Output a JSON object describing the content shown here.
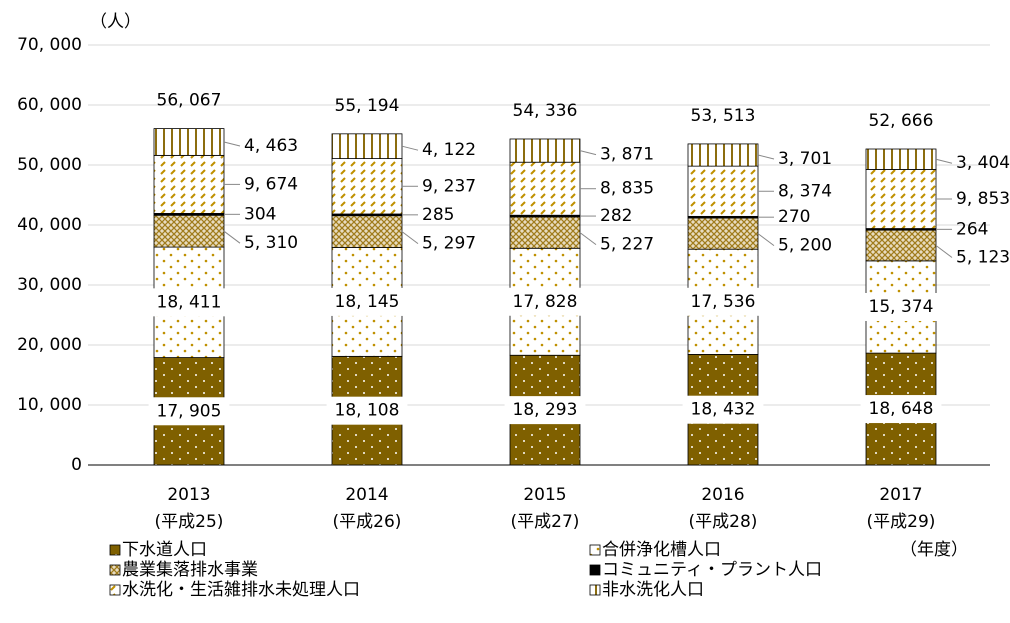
{
  "chart_data": {
    "type": "stacked_bar",
    "y_unit": "（人）",
    "x_unit": "（年度）",
    "categories": [
      "2013",
      "2014",
      "2015",
      "2016",
      "2017"
    ],
    "category_sublabels": [
      "(平成25)",
      "(平成26)",
      "(平成27)",
      "(平成28)",
      "(平成29)"
    ],
    "series": [
      {
        "name": "下水道人口",
        "color": "#7f6000",
        "values": [
          17905,
          18108,
          18293,
          18432,
          18648
        ],
        "value_labels": [
          "17, 905",
          "18, 108",
          "18, 293",
          "18, 432",
          "18, 648"
        ]
      },
      {
        "name": "合併浄化槽人口",
        "color": "#bf9000",
        "values": [
          18411,
          18145,
          17828,
          17536,
          15374
        ],
        "value_labels": [
          "18, 411",
          "18, 145",
          "17, 828",
          "17, 536",
          "15, 374"
        ]
      },
      {
        "name": "農業集落排水事業",
        "color": "#a07c1c",
        "values": [
          5310,
          5297,
          5227,
          5200,
          5123
        ],
        "value_labels": [
          "5, 310",
          "5, 297",
          "5, 227",
          "5, 200",
          "5, 123"
        ]
      },
      {
        "name": "コミュニティ・プラント人口",
        "color": "#000000",
        "values": [
          304,
          285,
          282,
          270,
          264
        ],
        "value_labels": [
          "304",
          "285",
          "282",
          "270",
          "264"
        ]
      },
      {
        "name": "水洗化・生活雑排水未処理人口",
        "color": "#bf9000",
        "values": [
          9674,
          9237,
          8835,
          8374,
          9853
        ],
        "value_labels": [
          "9, 674",
          "9, 237",
          "8, 835",
          "8, 374",
          "9, 853"
        ]
      },
      {
        "name": "非水洗化人口",
        "color": "#8c6d0f",
        "values": [
          4463,
          4122,
          3871,
          3701,
          3404
        ],
        "value_labels": [
          "4, 463",
          "4, 122",
          "3, 871",
          "3, 701",
          "3, 404"
        ]
      }
    ],
    "totals": [
      56067,
      55194,
      54336,
      53513,
      52666
    ],
    "total_labels": [
      "56, 067",
      "55, 194",
      "54, 336",
      "53, 513",
      "52, 666"
    ],
    "ylim": [
      0,
      70000
    ],
    "yticks": [
      0,
      {
        "value": 10000,
        "label": "10, 000"
      },
      {
        "value": 20000,
        "label": "20, 000"
      },
      {
        "value": 30000,
        "label": "30, 000"
      },
      {
        "value": 40000,
        "label": "40, 000"
      },
      {
        "value": 50000,
        "label": "50, 000"
      },
      {
        "value": 60000,
        "label": "60, 000"
      },
      {
        "value": 70000,
        "label": "70, 000"
      }
    ],
    "grid": true
  }
}
